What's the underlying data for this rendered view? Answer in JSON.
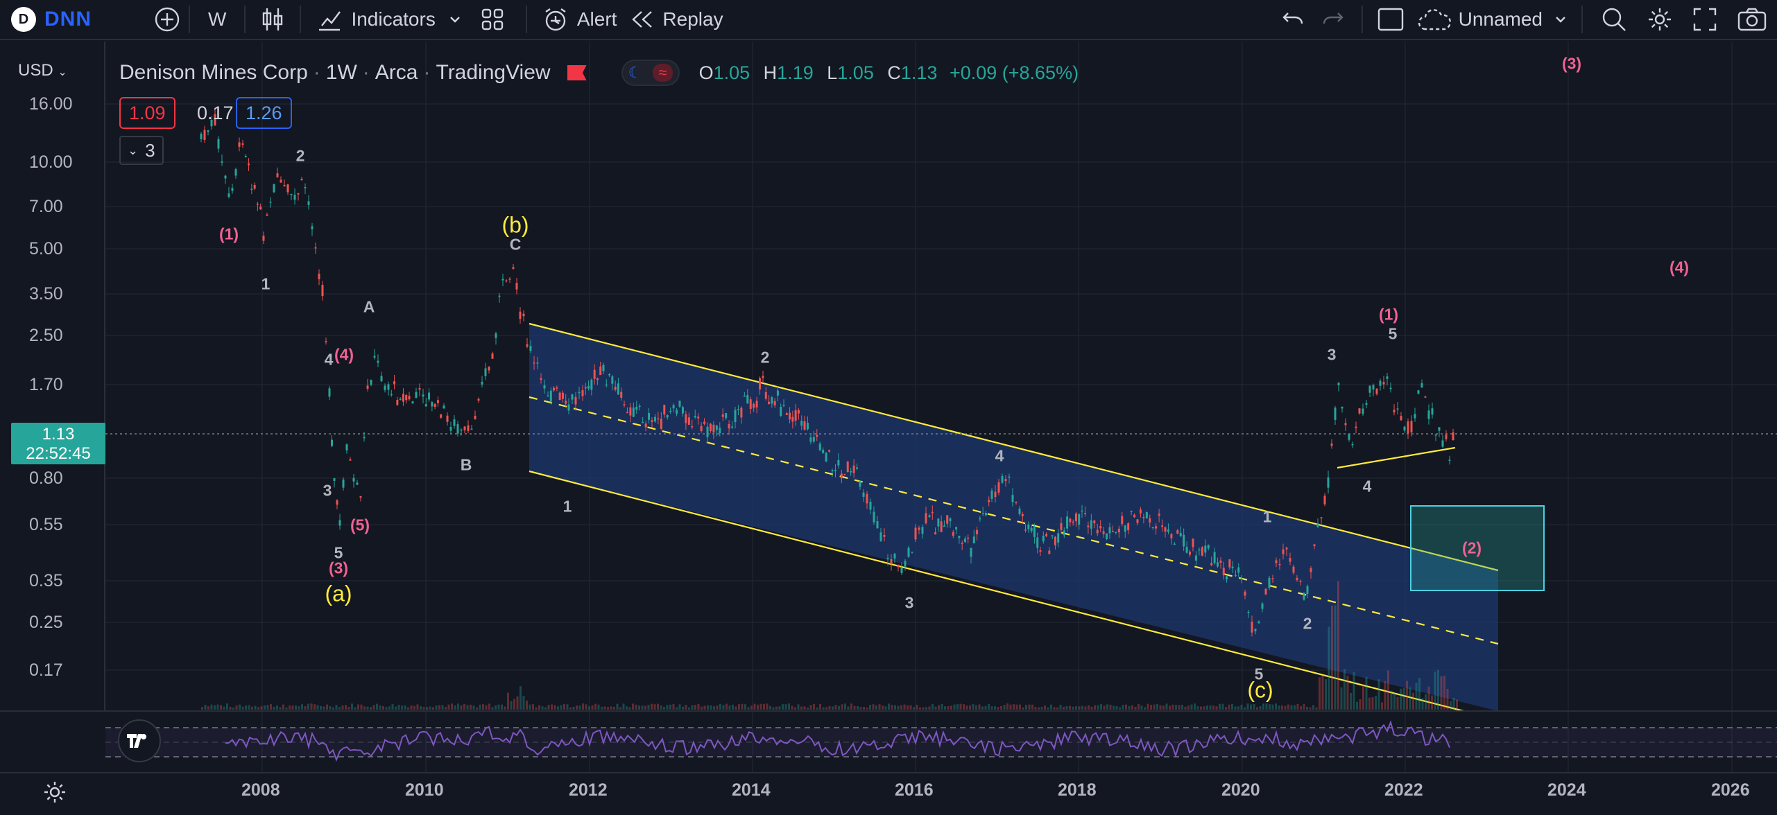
{
  "toolbar": {
    "symbol_logo": "D",
    "symbol": "DNN",
    "interval": "W",
    "indicators": "Indicators",
    "alert": "Alert",
    "replay": "Replay",
    "layout_name": "Unnamed"
  },
  "legend": {
    "name": "Denison Mines Corp",
    "interval": "1W",
    "exchange": "Arca",
    "source": "TradingView",
    "o_label": "O",
    "o": "1.05",
    "h_label": "H",
    "h": "1.19",
    "l_label": "L",
    "l": "1.05",
    "c_label": "C",
    "c": "1.13",
    "change": "+0.09 (+8.65%)",
    "bid": "1.09",
    "spread": "0.17",
    "ask": "1.26",
    "indicator_count": "3"
  },
  "price_scale": {
    "currency": "USD",
    "labels": [
      "16.00",
      "10.00",
      "7.00",
      "5.00",
      "3.50",
      "2.50",
      "1.70",
      "0.80",
      "0.55",
      "0.35",
      "0.25",
      "0.17"
    ],
    "current_price": "1.13",
    "countdown": "22:52:45"
  },
  "time_scale": {
    "labels": [
      "2008",
      "2010",
      "2012",
      "2014",
      "2016",
      "2018",
      "2020",
      "2022",
      "2024",
      "2026"
    ]
  },
  "colors": {
    "background": "#131722",
    "up": "#26a69a",
    "down": "#ef5350",
    "channel_line": "#ffeb3b",
    "channel_fill": "#1e3a7a",
    "target_box": "#26a69a",
    "rsi": "#7e57c2"
  },
  "waves": [
    {
      "text": "(1)",
      "color": "pink"
    },
    {
      "text": "1",
      "color": "grey"
    },
    {
      "text": "2",
      "color": "grey"
    },
    {
      "text": "A",
      "color": "grey"
    },
    {
      "text": "4",
      "color": "grey"
    },
    {
      "text": "(4)",
      "color": "pink"
    },
    {
      "text": "3",
      "color": "grey"
    },
    {
      "text": "(5)",
      "color": "pink"
    },
    {
      "text": "5",
      "color": "grey"
    },
    {
      "text": "(3)",
      "color": "pink"
    },
    {
      "text": "(a)",
      "color": "yellow"
    },
    {
      "text": "B",
      "color": "grey"
    },
    {
      "text": "(b)",
      "color": "yellow"
    },
    {
      "text": "C",
      "color": "grey"
    },
    {
      "text": "1",
      "color": "grey"
    },
    {
      "text": "2",
      "color": "grey"
    },
    {
      "text": "3",
      "color": "grey"
    },
    {
      "text": "4",
      "color": "grey"
    },
    {
      "text": "5",
      "color": "grey"
    },
    {
      "text": "(c)",
      "color": "yellow"
    },
    {
      "text": "1",
      "color": "grey"
    },
    {
      "text": "2",
      "color": "grey"
    },
    {
      "text": "3",
      "color": "grey"
    },
    {
      "text": "4",
      "color": "grey"
    },
    {
      "text": "5",
      "color": "grey"
    },
    {
      "text": "(1)",
      "color": "pink"
    },
    {
      "text": "(2)",
      "color": "pink"
    },
    {
      "text": "(3)",
      "color": "pink"
    },
    {
      "text": "(4)",
      "color": "pink"
    }
  ]
}
